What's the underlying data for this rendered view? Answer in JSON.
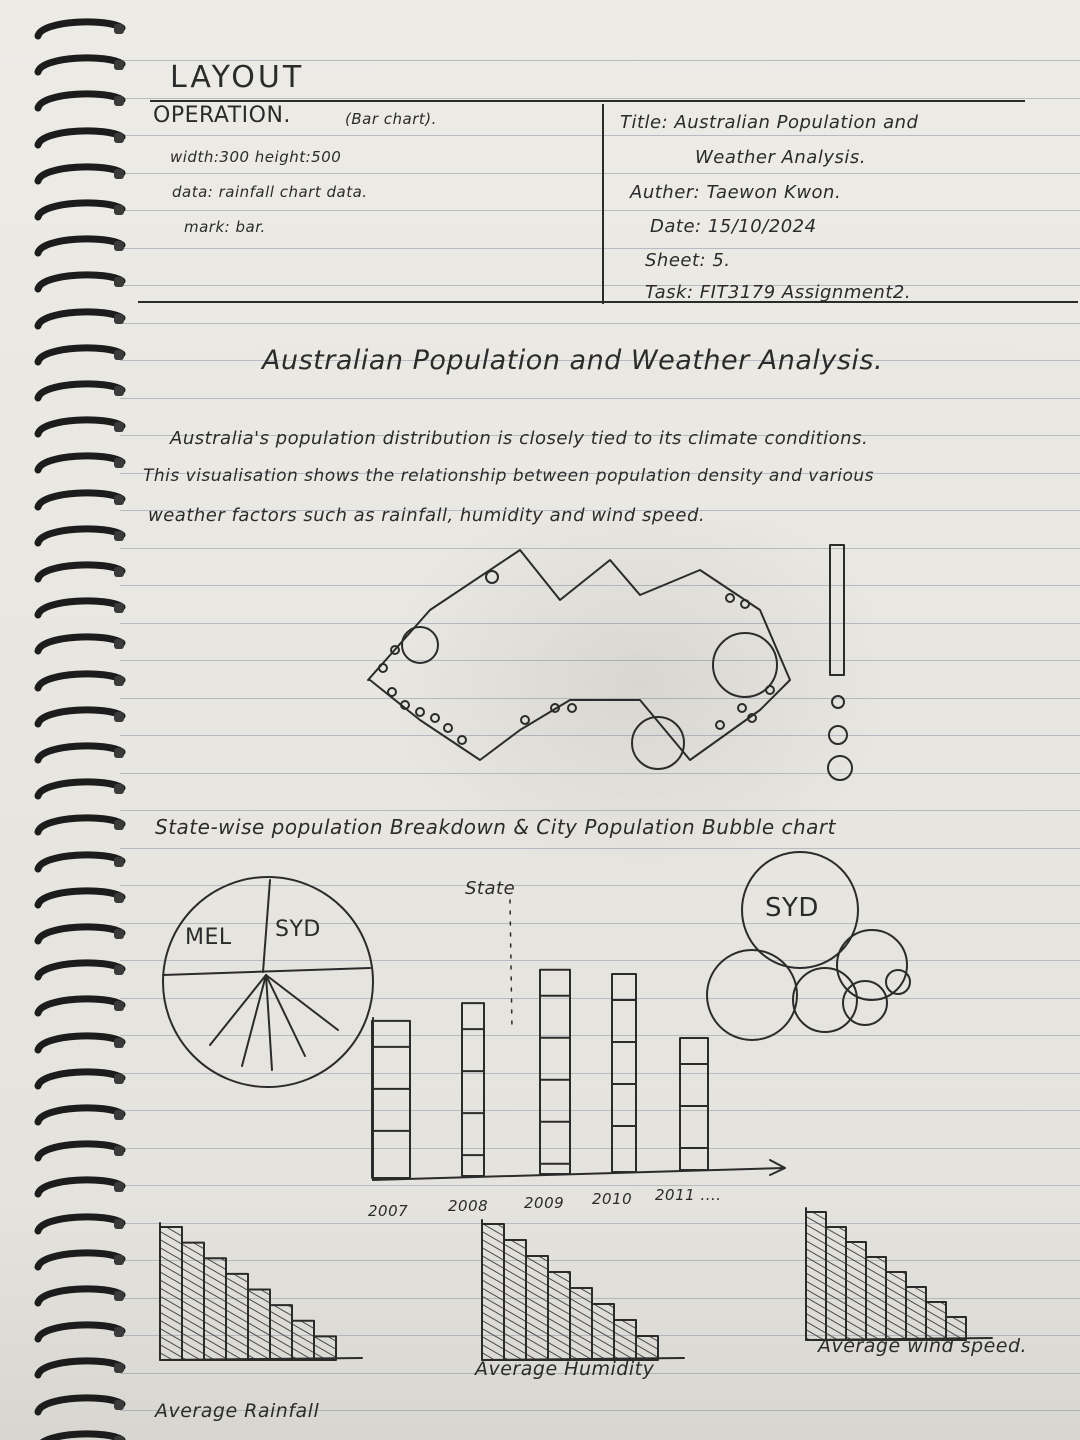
{
  "header": {
    "layout": "LAYOUT",
    "operation": "OPERATION.",
    "chart_type": "(Bar chart).",
    "dims": "width:300   height:500",
    "data": "data: rainfall chart data.",
    "mark": "mark: bar."
  },
  "meta": {
    "title_line1": "Title: Australian Population and",
    "title_line2": "Weather Analysis.",
    "author": "Auther: Taewon Kwon.",
    "date": "Date: 15/10/2024",
    "sheet": "Sheet: 5.",
    "task": "Task: FIT3179 Assignment2."
  },
  "main_title": "Australian Population and Weather Analysis.",
  "description": [
    "Australia's population distribution is closely tied to its climate conditions.",
    "This visualisation shows the relationship between population density and various",
    "weather factors such as rainfall, humidity and wind speed."
  ],
  "section_title": "State-wise population Breakdown & City Population Bubble chart",
  "pie": {
    "labels": [
      "MEL",
      "SYD"
    ]
  },
  "bubble": {
    "label": "SYD"
  },
  "bar_chart": {
    "label": "State",
    "years": [
      "2007",
      "2008",
      "2009",
      "2010",
      "2011 ...."
    ]
  },
  "mini_charts": [
    "Average Rainfall",
    "Average Humidity",
    "Average wind speed."
  ],
  "colors": {
    "paper": "#ebe9e4",
    "ink": "#2b2b2b",
    "rule": "#b9b9c2",
    "coil": "#1c1c1c"
  },
  "chart_data": [
    {
      "type": "bar",
      "categories": [
        "2007",
        "2008",
        "2009",
        "2010",
        "2011 ...."
      ],
      "values": [
        5,
        5.5,
        6.5,
        6.3,
        4.2
      ],
      "ylim": [
        0,
        7
      ],
      "xlabel": "",
      "ylabel": "",
      "grid": false
    }
  ]
}
